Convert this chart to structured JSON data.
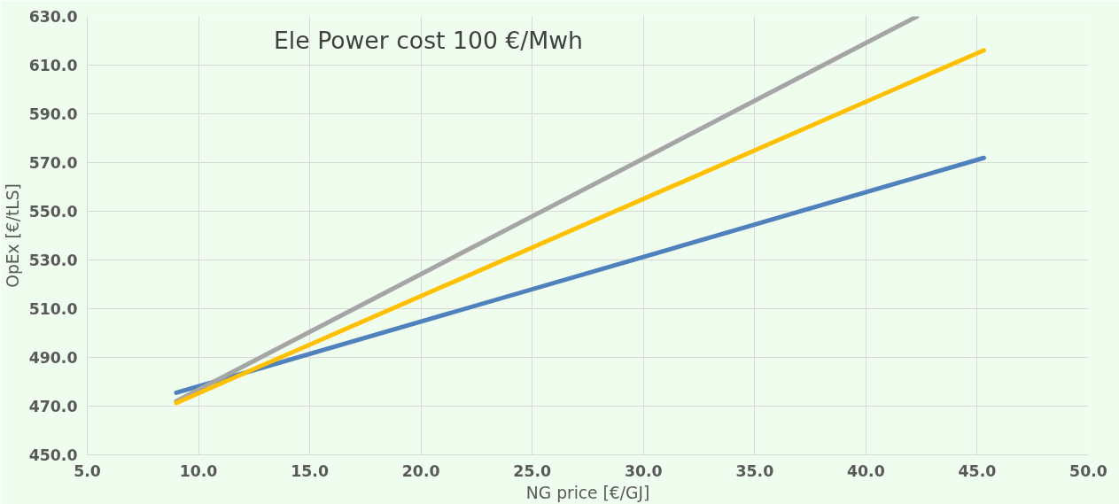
{
  "chart_data": {
    "type": "line",
    "title": "Ele Power cost 100  €/Mwh",
    "xlabel": "NG price [€/GJ]",
    "ylabel": "OpEx [€/tLS]",
    "xlim": [
      5,
      50
    ],
    "ylim": [
      450,
      630
    ],
    "xticks": [
      {
        "value": 5,
        "label": "5.0"
      },
      {
        "value": 10,
        "label": "10.0"
      },
      {
        "value": 15,
        "label": "15.0"
      },
      {
        "value": 20,
        "label": "20.0"
      },
      {
        "value": 25,
        "label": "25.0"
      },
      {
        "value": 30,
        "label": "30.0"
      },
      {
        "value": 35,
        "label": "35.0"
      },
      {
        "value": 40,
        "label": "40.0"
      },
      {
        "value": 45,
        "label": "45.0"
      },
      {
        "value": 50,
        "label": "50.0"
      }
    ],
    "yticks": [
      {
        "value": 450,
        "label": "450.0"
      },
      {
        "value": 470,
        "label": "470.0"
      },
      {
        "value": 490,
        "label": "490.0"
      },
      {
        "value": 510,
        "label": "510.0"
      },
      {
        "value": 530,
        "label": "530.0"
      },
      {
        "value": 550,
        "label": "550.0"
      },
      {
        "value": 570,
        "label": "570.0"
      },
      {
        "value": 590,
        "label": "590.0"
      },
      {
        "value": 610,
        "label": "610.0"
      },
      {
        "value": 630,
        "label": "630.0"
      }
    ],
    "grid": true,
    "marker": "none",
    "line_style": "solid",
    "series": [
      {
        "color": "#4f81bd",
        "x": [
          9.0,
          45.3
        ],
        "values": [
          475.5,
          571.9
        ]
      },
      {
        "color": "#a5a5a5",
        "x": [
          9.0,
          42.3
        ],
        "values": [
          472,
          630
        ]
      },
      {
        "color": "#ffc000",
        "x": [
          9.0,
          45.3
        ],
        "values": [
          471.3,
          616.1
        ]
      }
    ]
  }
}
